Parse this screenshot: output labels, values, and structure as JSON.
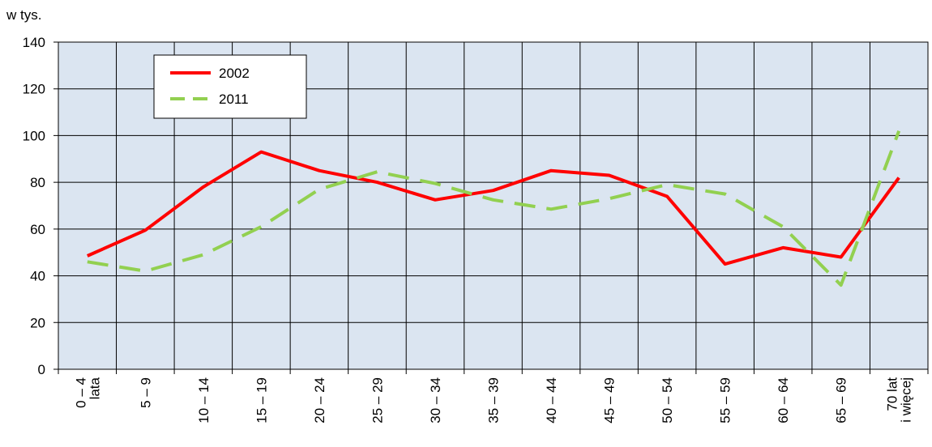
{
  "chart_data": {
    "type": "line",
    "y_label": "w tys.",
    "categories": [
      "0 – 4\nlata",
      "5 – 9",
      "10 – 14",
      "15 – 19",
      "20 – 24",
      "25 – 29",
      "30 – 34",
      "35 – 39",
      "40 – 44",
      "45 – 49",
      "50 – 54",
      "55 – 59",
      "60 – 64",
      "65 – 69",
      "70 lat\ni więcej"
    ],
    "series": [
      {
        "name": "2002",
        "color": "#ff0000",
        "dash": "solid",
        "values": [
          48.5,
          59.5,
          78,
          93,
          85,
          80,
          72.5,
          76.5,
          85,
          83,
          74,
          45,
          52,
          48,
          82
        ]
      },
      {
        "name": "2011",
        "color": "#92d050",
        "dash": "dashed",
        "values": [
          46,
          42,
          49,
          61,
          77,
          84.5,
          79.5,
          72.5,
          68.5,
          73,
          79,
          75,
          61,
          36,
          102
        ]
      }
    ],
    "ylim": [
      0,
      140
    ],
    "yticks": [
      0,
      20,
      40,
      60,
      80,
      100,
      120,
      140
    ],
    "grid": true,
    "legend": "upper left"
  }
}
